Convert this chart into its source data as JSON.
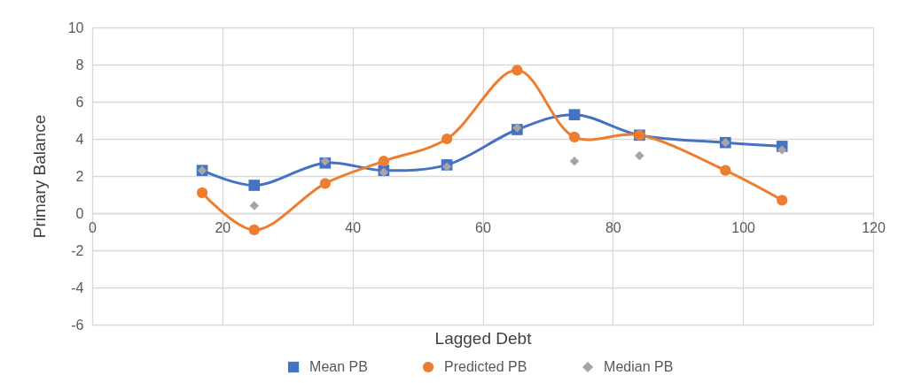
{
  "chart_data": {
    "type": "line",
    "xlabel": "Lagged Debt",
    "ylabel": "Primary Balance",
    "x": [
      16.9,
      24.9,
      35.8,
      44.8,
      54.5,
      65.3,
      74.1,
      84.1,
      97.3,
      106.0
    ],
    "series": [
      {
        "name": "Mean PB",
        "color": "#4472c4",
        "marker": "square",
        "values": [
          2.3,
          1.5,
          2.7,
          2.3,
          2.6,
          4.5,
          5.3,
          4.2,
          3.8,
          3.6
        ]
      },
      {
        "name": "Predicted PB",
        "color": "#ed7d31",
        "marker": "circle",
        "values": [
          1.1,
          -0.9,
          1.6,
          2.8,
          4.0,
          7.7,
          4.1,
          4.2,
          2.3,
          0.7
        ]
      },
      {
        "name": "Median PB",
        "type": "scatter",
        "color": "#a5a5a5",
        "marker": "diamond",
        "values": [
          2.3,
          0.4,
          2.8,
          2.2,
          2.5,
          4.6,
          2.8,
          3.1,
          3.8,
          3.4
        ]
      }
    ],
    "xlim": [
      0,
      120
    ],
    "xticks": [
      0,
      20,
      40,
      60,
      80,
      100,
      120
    ],
    "ylim": [
      -6,
      10
    ],
    "yticks": [
      -6,
      -4,
      -2,
      0,
      2,
      4,
      6,
      8,
      10
    ],
    "grid": true,
    "legend": "bottom",
    "line_style": "solid"
  }
}
